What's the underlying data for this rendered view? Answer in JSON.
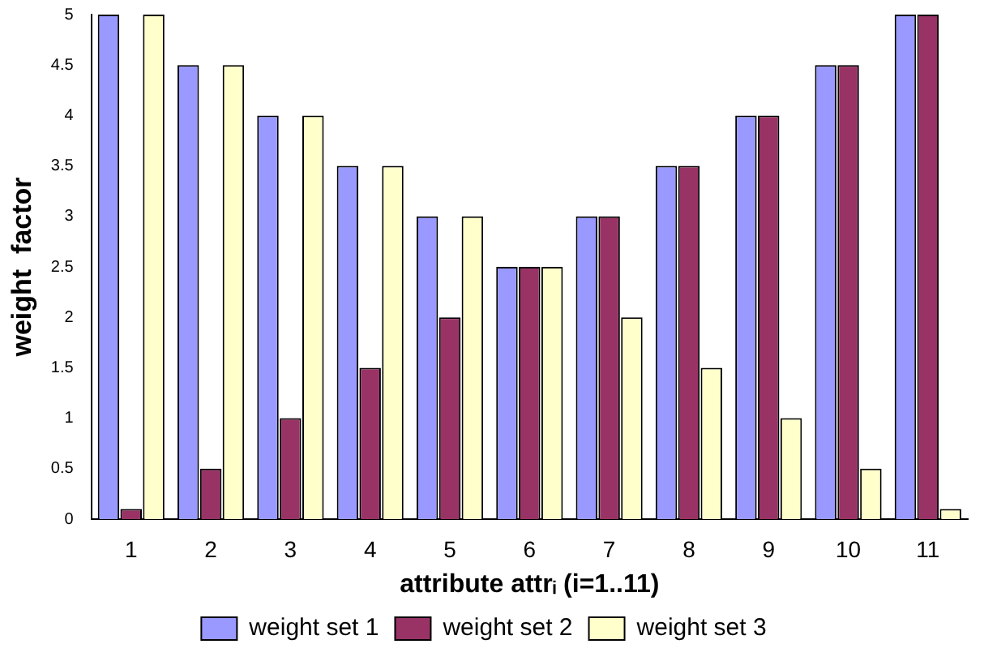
{
  "chart_data": {
    "type": "bar",
    "xlabel": "attribute attrᵢ (i=1..11)",
    "ylabel": "weight  factor",
    "categories": [
      "1",
      "2",
      "3",
      "4",
      "5",
      "6",
      "7",
      "8",
      "9",
      "10",
      "11"
    ],
    "series": [
      {
        "name": "weight set 1",
        "color": "#9999ff",
        "values": [
          5,
          4.5,
          4,
          3.5,
          3,
          2.5,
          3,
          3.5,
          4,
          4.5,
          5
        ]
      },
      {
        "name": "weight set 2",
        "color": "#993366",
        "values": [
          0.1,
          0.5,
          1,
          1.5,
          2,
          2.5,
          3,
          3.5,
          4,
          4.5,
          5
        ]
      },
      {
        "name": "weight set 3",
        "color": "#ffffcc",
        "values": [
          5,
          4.5,
          4,
          3.5,
          3,
          2.5,
          2,
          1.5,
          1,
          0.5,
          0.1
        ]
      }
    ],
    "ylim": [
      0,
      5
    ],
    "yticks": [
      0,
      0.5,
      1,
      1.5,
      2,
      2.5,
      3,
      3.5,
      4,
      4.5,
      5
    ],
    "grid": false,
    "legend": "bottom"
  }
}
